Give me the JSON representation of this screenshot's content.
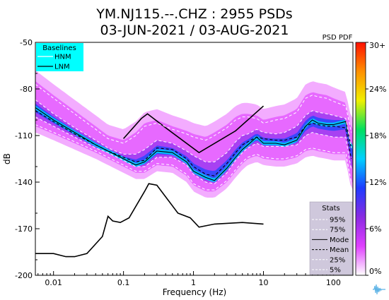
{
  "chart_data": {
    "type": "heatmap",
    "title_line1": "YM.NJ115.--.CHZ : 2955 PSDs",
    "title_line2": "03-JUN-2021 / 03-AUG-2021",
    "xlabel": "Frequency (Hz)",
    "ylabel": "dB",
    "xscale": "log",
    "xlim": [
      0.0055,
      190
    ],
    "ylim": [
      -200,
      -50
    ],
    "x_ticks": [
      {
        "value": 0.01,
        "label": "0.01"
      },
      {
        "value": 0.1,
        "label": "0.1"
      },
      {
        "value": 1,
        "label": "1"
      },
      {
        "value": 10,
        "label": "10"
      },
      {
        "value": 100,
        "label": "100"
      }
    ],
    "y_ticks": [
      {
        "value": -50,
        "label": "-50"
      },
      {
        "value": -80,
        "label": "-80"
      },
      {
        "value": -110,
        "label": "-110"
      },
      {
        "value": -140,
        "label": "-140"
      },
      {
        "value": -170,
        "label": "-170"
      },
      {
        "value": -200,
        "label": "-200"
      }
    ],
    "colorbar": {
      "title": "PSD PDF",
      "range": [
        0,
        30
      ],
      "ticks": [
        {
          "value": 30,
          "label": "30+"
        },
        {
          "value": 24,
          "label": "24%"
        },
        {
          "value": 18,
          "label": "18%"
        },
        {
          "value": 12,
          "label": "12%"
        },
        {
          "value": 6,
          "label": "6%"
        },
        {
          "value": 0,
          "label": "0%"
        }
      ],
      "stops": [
        "#ffffff",
        "#e040ff",
        "#8a2be2",
        "#1e3cff",
        "#00d0ff",
        "#00e060",
        "#f0f000",
        "#ff9000",
        "#ff1000"
      ]
    },
    "legend_baselines": {
      "title": "Baselines",
      "placement": "top-left",
      "background": "#00ffff",
      "items": [
        {
          "label": "HNM",
          "style": "solid-white"
        },
        {
          "label": "LNM",
          "style": "solid-black"
        }
      ]
    },
    "legend_stats": {
      "title": "Stats",
      "placement": "bottom-right",
      "items": [
        {
          "label": "95%",
          "style": "dashed-white"
        },
        {
          "label": "75%",
          "style": "dashed-white"
        },
        {
          "label": "Mode",
          "style": "solid-black"
        },
        {
          "label": "Mean",
          "style": "dashed-black"
        },
        {
          "label": "25%",
          "style": "dashed-white"
        },
        {
          "label": "5%",
          "style": "dashed-white"
        }
      ]
    },
    "series": [
      {
        "name": "HNM",
        "x": [
          0.1,
          0.18,
          0.22,
          0.4,
          1.2,
          4,
          10
        ],
        "y": [
          -112,
          -99,
          -96,
          -105,
          -121,
          -107,
          -91
        ]
      },
      {
        "name": "LNM",
        "x": [
          0.0055,
          0.01,
          0.015,
          0.02,
          0.03,
          0.05,
          0.06,
          0.07,
          0.09,
          0.12,
          0.2,
          0.23,
          0.3,
          0.6,
          0.9,
          1.2,
          2,
          5,
          10
        ],
        "y": [
          -186,
          -186,
          -188,
          -188,
          -186,
          -175,
          -162,
          -165,
          -166,
          -163,
          -146,
          -141,
          -142,
          -160,
          -163,
          -169,
          -167,
          -166,
          -167
        ]
      },
      {
        "name": "Mode",
        "x": [
          0.0055,
          0.01,
          0.02,
          0.04,
          0.06,
          0.1,
          0.15,
          0.2,
          0.3,
          0.5,
          0.8,
          1,
          1.5,
          2,
          3,
          4,
          5,
          6,
          8,
          10,
          15,
          20,
          30,
          40,
          50,
          60,
          80,
          100,
          150,
          180
        ],
        "y": [
          -92,
          -100,
          -108,
          -116,
          -120,
          -125,
          -129,
          -127,
          -120,
          -121,
          -127,
          -133,
          -137,
          -139,
          -131,
          -124,
          -119,
          -116,
          -111,
          -115,
          -115,
          -116,
          -113,
          -104,
          -100,
          -102,
          -103,
          -103,
          -101,
          -118
        ]
      },
      {
        "name": "Mean",
        "x": [
          0.0055,
          0.01,
          0.02,
          0.04,
          0.06,
          0.1,
          0.15,
          0.2,
          0.3,
          0.5,
          0.8,
          1,
          1.5,
          2,
          3,
          4,
          5,
          6,
          8,
          10,
          15,
          20,
          30,
          40,
          50,
          60,
          80,
          100,
          150,
          180
        ],
        "y": [
          -94,
          -101,
          -109,
          -116,
          -120,
          -124,
          -127,
          -126,
          -118,
          -119,
          -125,
          -130,
          -135,
          -136,
          -128,
          -121,
          -116,
          -114,
          -111,
          -112,
          -113,
          -113,
          -111,
          -104,
          -102,
          -103,
          -104,
          -104,
          -105,
          -125
        ]
      },
      {
        "name": "95%",
        "x": [
          0.0055,
          0.01,
          0.02,
          0.04,
          0.06,
          0.1,
          0.15,
          0.2,
          0.3,
          0.5,
          0.8,
          1,
          1.5,
          2,
          3,
          4,
          5,
          6,
          8,
          10,
          15,
          20,
          30,
          40,
          50,
          60,
          80,
          100,
          150,
          180
        ],
        "y": [
          -77,
          -86,
          -96,
          -106,
          -112,
          -115,
          -110,
          -104,
          -102,
          -106,
          -109,
          -111,
          -113,
          -110,
          -105,
          -100,
          -98,
          -98,
          -99,
          -102,
          -100,
          -99,
          -95,
          -86,
          -84,
          -85,
          -86,
          -88,
          -91,
          -108
        ]
      },
      {
        "name": "75%",
        "x": [
          0.0055,
          0.01,
          0.02,
          0.04,
          0.06,
          0.1,
          0.15,
          0.2,
          0.3,
          0.5,
          0.8,
          1,
          1.5,
          2,
          3,
          4,
          5,
          6,
          8,
          10,
          15,
          20,
          30,
          40,
          50,
          60,
          80,
          100,
          150,
          180
        ],
        "y": [
          -87,
          -96,
          -105,
          -113,
          -118,
          -122,
          -122,
          -119,
          -113,
          -115,
          -120,
          -123,
          -127,
          -127,
          -121,
          -114,
          -110,
          -109,
          -106,
          -108,
          -109,
          -108,
          -104,
          -97,
          -94,
          -95,
          -96,
          -97,
          -99,
          -118
        ]
      },
      {
        "name": "25%",
        "x": [
          0.0055,
          0.01,
          0.02,
          0.04,
          0.06,
          0.1,
          0.15,
          0.2,
          0.3,
          0.5,
          0.8,
          1,
          1.5,
          2,
          3,
          4,
          5,
          6,
          8,
          10,
          15,
          20,
          30,
          40,
          50,
          60,
          80,
          100,
          150,
          180
        ],
        "y": [
          -98,
          -104,
          -111,
          -118,
          -121,
          -126,
          -130,
          -130,
          -124,
          -124,
          -129,
          -135,
          -140,
          -141,
          -134,
          -126,
          -121,
          -118,
          -115,
          -117,
          -117,
          -117,
          -116,
          -110,
          -108,
          -109,
          -110,
          -111,
          -111,
          -132
        ]
      },
      {
        "name": "5%",
        "x": [
          0.0055,
          0.01,
          0.02,
          0.04,
          0.06,
          0.1,
          0.15,
          0.2,
          0.3,
          0.5,
          0.8,
          1,
          1.5,
          2,
          3,
          4,
          5,
          6,
          8,
          10,
          15,
          20,
          30,
          40,
          50,
          60,
          80,
          100,
          150,
          180
        ],
        "y": [
          -103,
          -108,
          -114,
          -120,
          -124,
          -129,
          -133,
          -133,
          -128,
          -129,
          -135,
          -141,
          -145,
          -145,
          -139,
          -132,
          -127,
          -124,
          -122,
          -124,
          -125,
          -125,
          -123,
          -119,
          -118,
          -119,
          -120,
          -121,
          -121,
          -140
        ]
      }
    ]
  }
}
